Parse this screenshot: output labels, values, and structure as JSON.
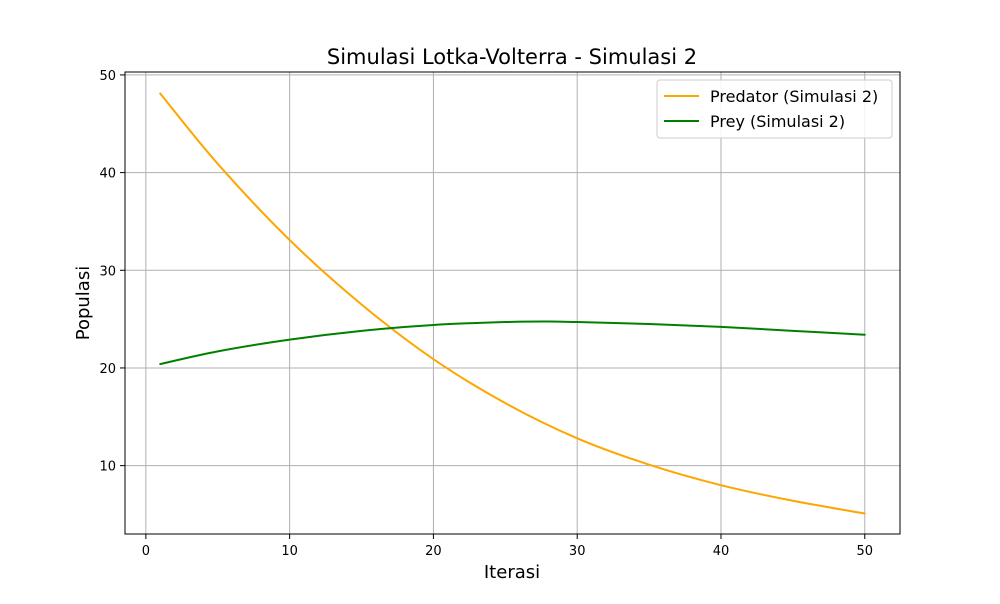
{
  "chart_data": {
    "type": "line",
    "title": "Simulasi Lotka-Volterra - Simulasi 2",
    "xlabel": "Iterasi",
    "ylabel": "Populasi",
    "xlim": [
      -1.45,
      52.45
    ],
    "ylim": [
      3.0,
      50.3
    ],
    "xticks": [
      0,
      10,
      20,
      30,
      40,
      50
    ],
    "yticks": [
      10,
      20,
      30,
      40,
      50
    ],
    "grid": true,
    "legend_position": "top-right",
    "series": [
      {
        "name": "Predator (Simulasi 2)",
        "color": "#ffa500",
        "x": [
          1,
          5,
          10,
          15,
          20,
          25,
          30,
          35,
          40,
          45,
          50
        ],
        "y": [
          48.1,
          40.9,
          33.1,
          26.5,
          20.9,
          16.4,
          12.8,
          10.1,
          8.0,
          6.4,
          5.1
        ]
      },
      {
        "name": "Prey (Simulasi 2)",
        "color": "#008000",
        "x": [
          1,
          5,
          10,
          15,
          20,
          25,
          28,
          30,
          35,
          40,
          45,
          50
        ],
        "y": [
          20.4,
          21.7,
          22.9,
          23.8,
          24.4,
          24.7,
          24.75,
          24.7,
          24.5,
          24.2,
          23.8,
          23.4
        ]
      }
    ]
  }
}
